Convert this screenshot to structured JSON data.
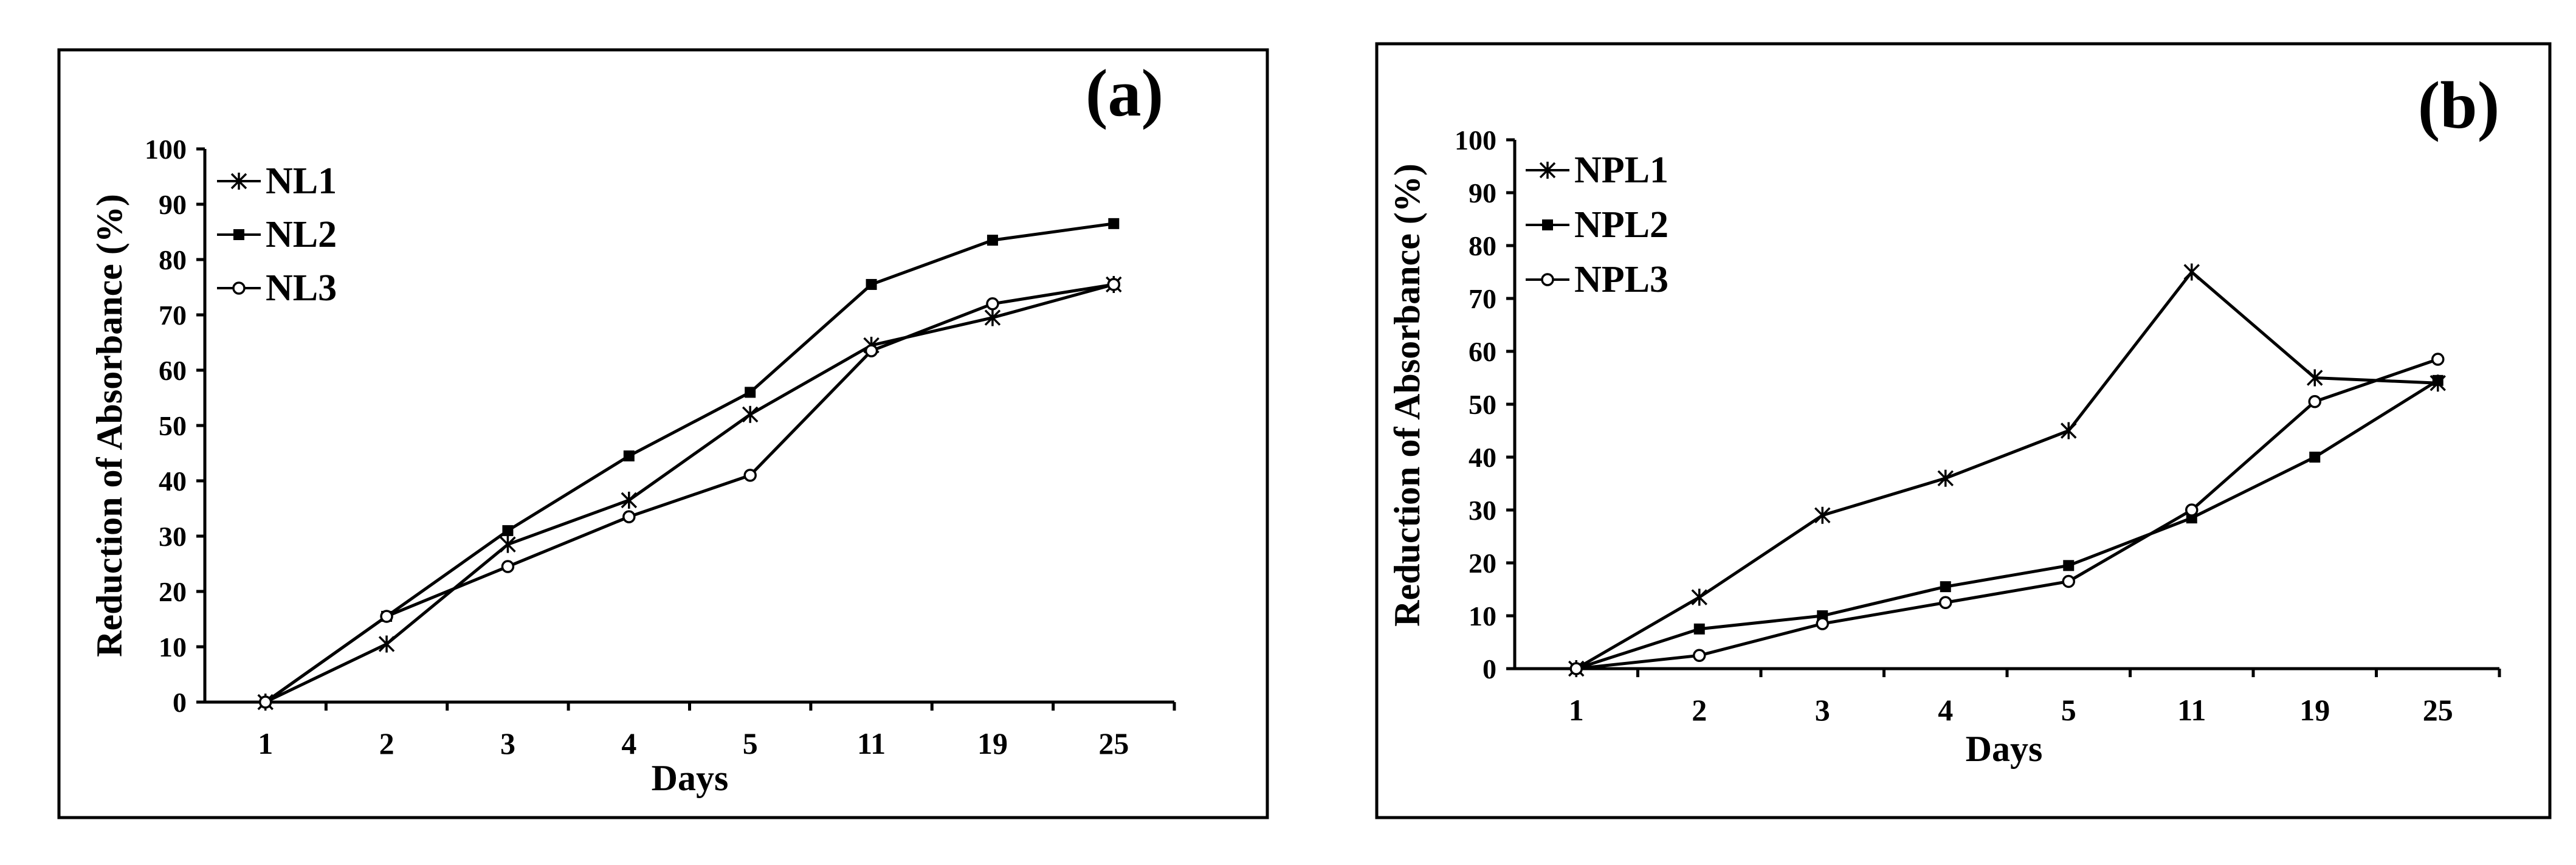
{
  "chart_data": [
    {
      "type": "line",
      "panel_label": "(a)",
      "xlabel": "Days",
      "ylabel": "Reduction of Absorbance (%)",
      "categories": [
        "1",
        "2",
        "3",
        "4",
        "5",
        "11",
        "19",
        "25"
      ],
      "ylim": [
        0,
        100
      ],
      "yticks": [
        "0",
        "10",
        "20",
        "30",
        "40",
        "50",
        "60",
        "70",
        "80",
        "90",
        "100"
      ],
      "grid": false,
      "legend": "top-left",
      "series": [
        {
          "name": "NL1",
          "marker": "star",
          "values": [
            0,
            10.5,
            28.5,
            36.5,
            52,
            64.5,
            69.5,
            75.5
          ]
        },
        {
          "name": "NL2",
          "marker": "square",
          "values": [
            0,
            15.5,
            31,
            44.5,
            56,
            75.5,
            83.5,
            86.5
          ]
        },
        {
          "name": "NL3",
          "marker": "circle",
          "values": [
            0,
            15.5,
            24.5,
            33.5,
            41,
            63.5,
            72,
            75.5
          ]
        }
      ]
    },
    {
      "type": "line",
      "panel_label": "(b)",
      "xlabel": "Days",
      "ylabel": "Reduction of Absorbance (%)",
      "categories": [
        "1",
        "2",
        "3",
        "4",
        "5",
        "11",
        "19",
        "25"
      ],
      "ylim": [
        0,
        100
      ],
      "yticks": [
        "0",
        "10",
        "20",
        "30",
        "40",
        "50",
        "60",
        "70",
        "80",
        "90",
        "100"
      ],
      "grid": false,
      "legend": "top-left",
      "series": [
        {
          "name": "NPL1",
          "marker": "star",
          "values": [
            0,
            13.5,
            29,
            36,
            45,
            75,
            55,
            54
          ]
        },
        {
          "name": "NPL2",
          "marker": "square",
          "values": [
            0,
            7.5,
            10,
            15.5,
            19.5,
            28.5,
            40,
            54.5
          ]
        },
        {
          "name": "NPL3",
          "marker": "circle",
          "values": [
            0,
            2.5,
            8.5,
            12.5,
            16.5,
            30,
            50.5,
            58.5
          ]
        }
      ]
    }
  ]
}
